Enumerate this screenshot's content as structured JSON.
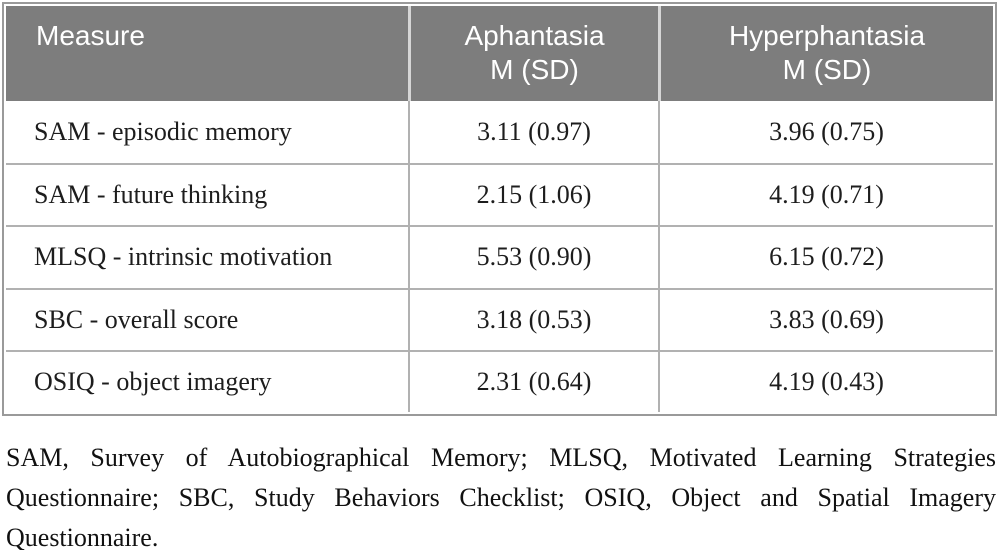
{
  "table": {
    "header": {
      "measure": "Measure",
      "aphantasia": {
        "line1": "Aphantasia",
        "line2": "M (SD)"
      },
      "hyperphantasia": {
        "line1": "Hyperphantasia",
        "line2": "M (SD)"
      }
    },
    "rows": [
      {
        "measure": "SAM - episodic memory",
        "aphantasia": "3.11 (0.97)",
        "hyperphantasia": "3.96 (0.75)"
      },
      {
        "measure": "SAM - future thinking",
        "aphantasia": "2.15 (1.06)",
        "hyperphantasia": "4.19 (0.71)"
      },
      {
        "measure": "MLSQ - intrinsic motivation",
        "aphantasia": "5.53 (0.90)",
        "hyperphantasia": "6.15 (0.72)"
      },
      {
        "measure": "SBC - overall score",
        "aphantasia": "3.18 (0.53)",
        "hyperphantasia": "3.83 (0.69)"
      },
      {
        "measure": "OSIQ - object imagery",
        "aphantasia": "2.31 (0.64)",
        "hyperphantasia": "4.19 (0.43)"
      }
    ]
  },
  "footnote": "SAM, Survey of Autobiographical Memory; MLSQ, Motivated Learning Strategies Questionnaire; SBC, Study Behaviors Checklist; OSIQ, Object and Spatial Imagery Questionnaire.",
  "colors": {
    "header_bg": "#7d7d7d",
    "header_text": "#ffffff",
    "body_text": "#1d1d1d",
    "grid_line": "#b1b1b1",
    "outer_border": "#9a9a9a",
    "header_gap": "#d6d6d6"
  }
}
